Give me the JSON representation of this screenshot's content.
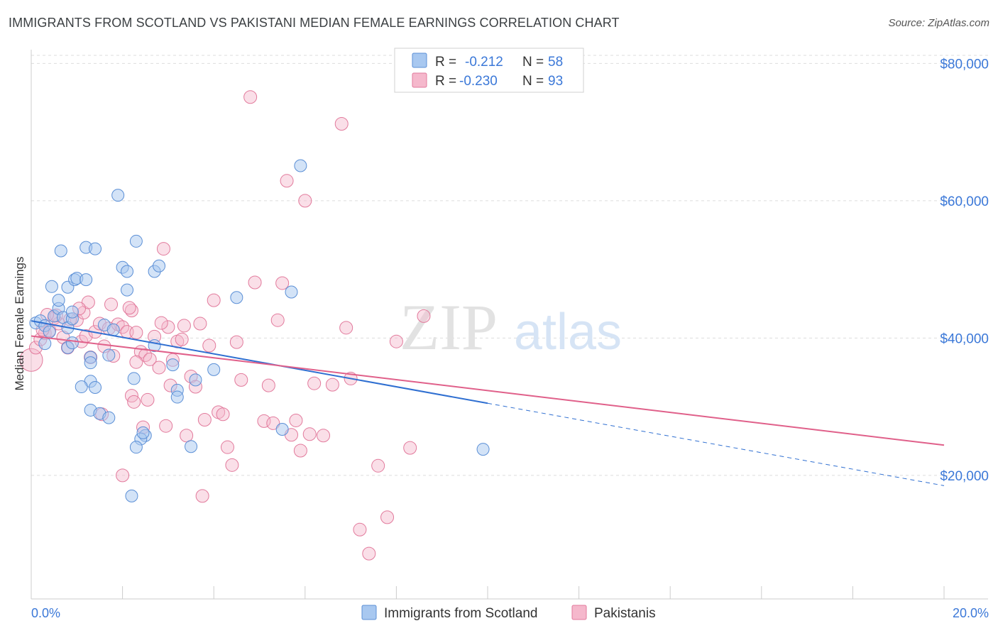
{
  "title": "IMMIGRANTS FROM SCOTLAND VS PAKISTANI MEDIAN FEMALE EARNINGS CORRELATION CHART",
  "source": "Source: ZipAtlas.com",
  "watermark": {
    "zip": "ZIP",
    "atlas": "atlas"
  },
  "legend": {
    "r_label": "R =",
    "n_label": "N =",
    "rows": [
      {
        "r": "-0.212",
        "n": "58",
        "color": "#a8c8f0"
      },
      {
        "r": "-0.230",
        "n": "93",
        "color": "#f5b8cc"
      }
    ]
  },
  "colors": {
    "blue_fill": "#a8c8f0",
    "blue_stroke": "#5b8fd6",
    "blue_line": "#2f6fd1",
    "pink_fill": "#f5b8cc",
    "pink_stroke": "#e27a9c",
    "pink_line": "#e0608a",
    "tick_text": "#3b78d8",
    "grid": "#dddddd"
  },
  "chart_data": {
    "type": "scatter",
    "title": "IMMIGRANTS FROM SCOTLAND VS PAKISTANI MEDIAN FEMALE EARNINGS CORRELATION CHART",
    "xlabel": "",
    "ylabel": "Median Female Earnings",
    "xlim": [
      0,
      20
    ],
    "ylim": [
      2000,
      82000
    ],
    "x_tick_labels": [
      "0.0%",
      "20.0%"
    ],
    "y_ticks": [
      20000,
      40000,
      60000,
      80000
    ],
    "y_tick_labels": [
      "$20,000",
      "$40,000",
      "$60,000",
      "$80,000"
    ],
    "grid": true,
    "legend_position": "top-center",
    "series": [
      {
        "name": "Immigrants from Scotland",
        "r": -0.212,
        "n": 58,
        "trend": {
          "x0": 0,
          "y0": 42500,
          "x1": 10,
          "y1": 30500,
          "dashed_to": {
            "x": 20,
            "y": 18500
          }
        },
        "points": [
          [
            0.1,
            42200
          ],
          [
            0.2,
            42500
          ],
          [
            0.3,
            41800
          ],
          [
            0.4,
            40900
          ],
          [
            0.3,
            39200
          ],
          [
            0.5,
            43200
          ],
          [
            0.6,
            44300
          ],
          [
            0.7,
            43000
          ],
          [
            0.8,
            41500
          ],
          [
            0.9,
            42800
          ],
          [
            0.6,
            45500
          ],
          [
            0.9,
            43800
          ],
          [
            0.45,
            47500
          ],
          [
            0.8,
            47400
          ],
          [
            0.95,
            48500
          ],
          [
            1.0,
            48700
          ],
          [
            1.2,
            48500
          ],
          [
            0.65,
            52700
          ],
          [
            1.2,
            53200
          ],
          [
            1.4,
            53000
          ],
          [
            2.0,
            50300
          ],
          [
            2.1,
            49700
          ],
          [
            2.3,
            54100
          ],
          [
            2.1,
            47000
          ],
          [
            1.9,
            60800
          ],
          [
            2.7,
            49700
          ],
          [
            2.8,
            50500
          ],
          [
            1.6,
            41900
          ],
          [
            1.8,
            41200
          ],
          [
            1.7,
            37500
          ],
          [
            1.3,
            37200
          ],
          [
            0.8,
            38600
          ],
          [
            0.9,
            39300
          ],
          [
            1.3,
            36400
          ],
          [
            1.3,
            33700
          ],
          [
            1.4,
            32800
          ],
          [
            1.1,
            32900
          ],
          [
            1.3,
            29500
          ],
          [
            1.5,
            29000
          ],
          [
            1.7,
            28400
          ],
          [
            2.25,
            34100
          ],
          [
            2.7,
            38900
          ],
          [
            3.1,
            36100
          ],
          [
            3.2,
            32400
          ],
          [
            3.2,
            31400
          ],
          [
            3.6,
            33900
          ],
          [
            4.0,
            35400
          ],
          [
            2.5,
            25800
          ],
          [
            2.4,
            25300
          ],
          [
            2.45,
            26200
          ],
          [
            2.3,
            24100
          ],
          [
            3.5,
            24200
          ],
          [
            2.2,
            17000
          ],
          [
            4.5,
            45900
          ],
          [
            5.7,
            46700
          ],
          [
            5.5,
            26700
          ],
          [
            5.9,
            65100
          ],
          [
            9.9,
            23800
          ]
        ]
      },
      {
        "name": "Pakistanis",
        "r": -0.23,
        "n": 93,
        "trend": {
          "x0": 0,
          "y0": 40300,
          "x1": 20,
          "y1": 24400
        },
        "points": [
          [
            0.0,
            36800
          ],
          [
            0.1,
            38600
          ],
          [
            0.2,
            39800
          ],
          [
            0.3,
            40700
          ],
          [
            0.4,
            41100
          ],
          [
            0.5,
            42900
          ],
          [
            0.6,
            42100
          ],
          [
            0.7,
            40100
          ],
          [
            0.8,
            38600
          ],
          [
            1.0,
            42600
          ],
          [
            1.1,
            39500
          ],
          [
            1.2,
            40300
          ],
          [
            1.3,
            37200
          ],
          [
            1.4,
            40900
          ],
          [
            1.5,
            42100
          ],
          [
            1.6,
            38800
          ],
          [
            1.7,
            41400
          ],
          [
            1.8,
            37400
          ],
          [
            1.9,
            42000
          ],
          [
            2.0,
            41600
          ],
          [
            2.1,
            40900
          ],
          [
            2.2,
            31600
          ],
          [
            2.3,
            40800
          ],
          [
            2.4,
            38000
          ],
          [
            2.5,
            37500
          ],
          [
            2.6,
            36900
          ],
          [
            2.7,
            40200
          ],
          [
            2.8,
            35700
          ],
          [
            2.9,
            53000
          ],
          [
            3.0,
            41600
          ],
          [
            3.1,
            36800
          ],
          [
            3.2,
            39500
          ],
          [
            3.3,
            39800
          ],
          [
            3.4,
            25800
          ],
          [
            3.5,
            34400
          ],
          [
            3.6,
            32900
          ],
          [
            3.7,
            42100
          ],
          [
            3.8,
            28100
          ],
          [
            3.9,
            38900
          ],
          [
            4.0,
            45500
          ],
          [
            4.1,
            29200
          ],
          [
            4.2,
            28900
          ],
          [
            4.3,
            24100
          ],
          [
            4.5,
            39400
          ],
          [
            4.6,
            33900
          ],
          [
            4.8,
            75100
          ],
          [
            4.9,
            48100
          ],
          [
            5.1,
            27900
          ],
          [
            5.2,
            33100
          ],
          [
            5.3,
            27600
          ],
          [
            5.4,
            42600
          ],
          [
            5.5,
            48000
          ],
          [
            5.6,
            62900
          ],
          [
            5.7,
            25900
          ],
          [
            5.8,
            28000
          ],
          [
            5.9,
            23600
          ],
          [
            6.0,
            60000
          ],
          [
            6.2,
            33400
          ],
          [
            6.4,
            25800
          ],
          [
            6.6,
            33200
          ],
          [
            6.8,
            71200
          ],
          [
            7.0,
            34100
          ],
          [
            7.2,
            12100
          ],
          [
            7.4,
            8600
          ],
          [
            7.6,
            21400
          ],
          [
            7.8,
            13900
          ],
          [
            8.0,
            39500
          ],
          [
            8.3,
            24000
          ],
          [
            8.6,
            43200
          ],
          [
            2.3,
            36500
          ],
          [
            2.45,
            27000
          ],
          [
            2.55,
            31000
          ],
          [
            1.15,
            43700
          ],
          [
            1.25,
            45200
          ],
          [
            1.05,
            44300
          ],
          [
            0.85,
            42700
          ],
          [
            0.55,
            43300
          ],
          [
            0.35,
            43400
          ],
          [
            2.2,
            44000
          ],
          [
            2.15,
            44400
          ],
          [
            1.75,
            44900
          ],
          [
            2.85,
            42200
          ],
          [
            3.35,
            41800
          ],
          [
            2.0,
            20000
          ],
          [
            3.75,
            17000
          ],
          [
            4.4,
            21500
          ],
          [
            3.05,
            33100
          ],
          [
            2.95,
            27200
          ],
          [
            2.25,
            30700
          ],
          [
            1.55,
            28900
          ],
          [
            0.25,
            41200
          ],
          [
            6.1,
            26000
          ],
          [
            6.9,
            41500
          ]
        ]
      }
    ]
  },
  "bottom_legend": [
    {
      "label": "Immigrants from Scotland",
      "color": "#a8c8f0"
    },
    {
      "label": "Pakistanis",
      "color": "#f5b8cc"
    }
  ]
}
